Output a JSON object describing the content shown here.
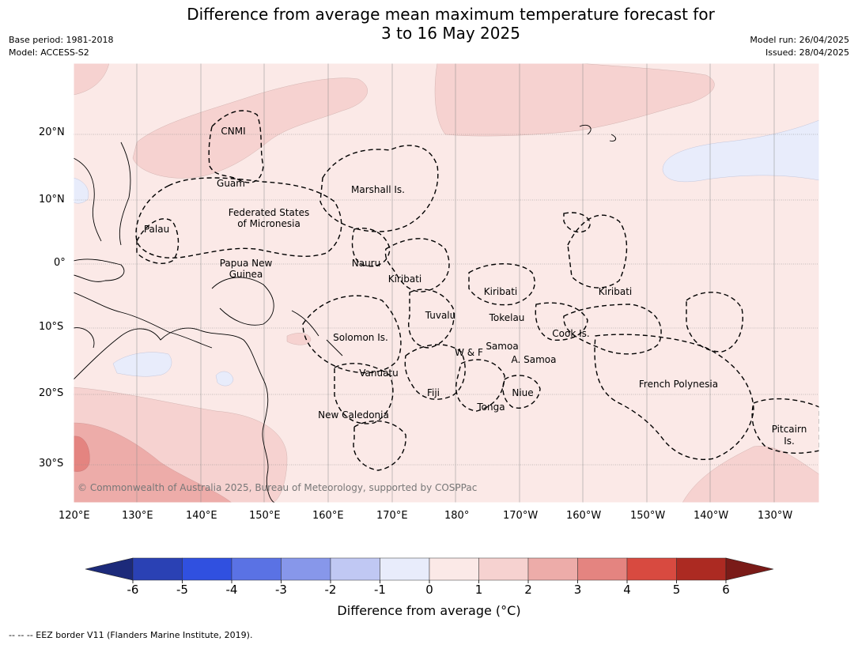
{
  "title_line1": "Difference from average mean maximum temperature forecast for",
  "title_line2": "3 to 16 May 2025",
  "base_period": "Base period: 1981-2018",
  "model": "Model: ACCESS-S2",
  "model_run": "Model run: 26/04/2025",
  "issued": "Issued: 28/04/2025",
  "lat_labels": [
    "20°N",
    "10°N",
    "0°",
    "10°S",
    "20°S",
    "30°S"
  ],
  "lon_labels": [
    "120°E",
    "130°E",
    "140°E",
    "150°E",
    "160°E",
    "170°E",
    "180°",
    "170°W",
    "160°W",
    "150°W",
    "140°W",
    "130°W"
  ],
  "region_labels": {
    "cnmi": "CNMI",
    "guam": "Guam",
    "marshall": "Marshall Is.",
    "fsm1": "Federated States",
    "fsm2": "of Micronesia",
    "palau": "Palau",
    "png1": "Papua New",
    "png2": "Guinea",
    "nauru": "Nauru",
    "kiribati1": "Kiribati",
    "kiribati2": "Kiribati",
    "kiribati3": "Kiribati",
    "tuvalu": "Tuvalu",
    "tokelau": "Tokelau",
    "cook": "Cook Is.",
    "solomon": "Solomon Is.",
    "wf": "W & F",
    "samoa": "Samoa",
    "asamoa": "A. Samoa",
    "vanuatu": "Vanuatu",
    "fiji": "Fiji",
    "niue": "Niue",
    "tonga": "Tonga",
    "frenchpoly": "French Polynesia",
    "newcal": "New Caledonia",
    "pitcairn1": "Pitcairn",
    "pitcairn2": "Is."
  },
  "copyright": "© Commonwealth of Australia 2025, Bureau of Meteorology, supported by COSPPac",
  "colorbar": {
    "ticks": [
      "-6",
      "-5",
      "-4",
      "-3",
      "-2",
      "-1",
      "0",
      "1",
      "2",
      "3",
      "4",
      "5",
      "6"
    ],
    "colors": [
      "#1c2a7a",
      "#2a41b4",
      "#3050e0",
      "#5a72e4",
      "#8797ea",
      "#c0c8f3",
      "#e8ecfb",
      "#fbe9e7",
      "#f6d2d0",
      "#edaca9",
      "#e48480",
      "#d84a40",
      "#ac2a22",
      "#7a1b18"
    ],
    "title": "Difference from average (°C)"
  },
  "footnote": "--  --  -- EEZ border V11 (Flanders Marine Institute, 2019).",
  "colors": {
    "ocean_base": "#fbe9e7",
    "light_warm": "#f6d2d0",
    "warm": "#edaca9",
    "hot": "#e48480",
    "cool": "#e8ecfb"
  }
}
